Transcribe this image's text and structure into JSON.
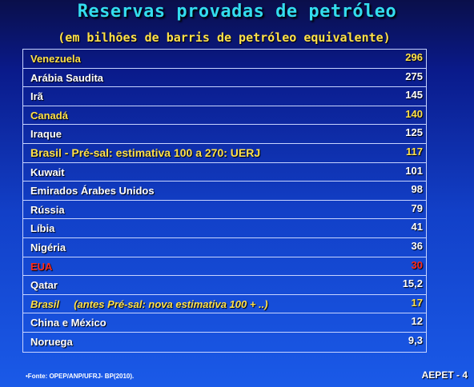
{
  "title": "Reservas provadas de petróleo",
  "subtitle": "(em bilhões de barris de petróleo equivalente)",
  "rows": [
    {
      "name": "Venezuela",
      "value": "296",
      "style": "yellow"
    },
    {
      "name": "Arábia Saudita",
      "value": "275",
      "style": ""
    },
    {
      "name": "Irã",
      "value": "145",
      "style": ""
    },
    {
      "name": "Canadá",
      "value": "140",
      "style": "yellow"
    },
    {
      "name": "Iraque",
      "value": "125",
      "style": ""
    },
    {
      "name": "Brasil - Pré-sal: estimativa 100 a 270: UERJ",
      "value": "117",
      "style": "yellow big"
    },
    {
      "name": "Kuwait",
      "value": "101",
      "style": ""
    },
    {
      "name": "Emirados Árabes Unidos",
      "value": "98",
      "style": ""
    },
    {
      "name": "Rússia",
      "value": "79",
      "style": ""
    },
    {
      "name": "Líbia",
      "value": "41",
      "style": ""
    },
    {
      "name": "Nigéria",
      "value": "36",
      "style": ""
    },
    {
      "name": "EUA",
      "value": "30",
      "style": "red"
    },
    {
      "name": "Qatar",
      "value": "15,2",
      "style": ""
    },
    {
      "name": "Brasil     (antes Pré-sal: nova estimativa 100 + ..)",
      "value": "17",
      "style": "yellow italic"
    },
    {
      "name": "China e México",
      "value": "12",
      "style": ""
    },
    {
      "name": "Noruega",
      "value": "9,3",
      "style": ""
    }
  ],
  "footer": {
    "source": "•Fonte: OPEP/ANP/UFRJ- BP(2010).",
    "page": "AEPET - 4"
  },
  "colors": {
    "title": "#33ddee",
    "highlight": "#ffe14a",
    "alert": "#ff2a1a",
    "text": "#ffffff"
  }
}
